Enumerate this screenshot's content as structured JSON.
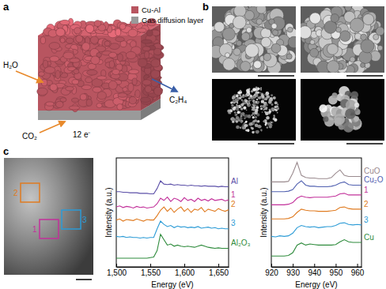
{
  "panels": {
    "a": {
      "label": "a",
      "legend": [
        {
          "name": "Cu-Al",
          "color": "#b85560"
        },
        {
          "name": "Gas diffusion layer",
          "color": "#9a9a9a"
        }
      ],
      "annotations": {
        "water": "H₂O",
        "product": "C₂H₄",
        "feed": "CO₂",
        "electrons": "12 e⁻"
      }
    },
    "b": {
      "label": "b"
    },
    "c": {
      "label": "c",
      "regions": [
        "1",
        "2",
        "3"
      ]
    }
  },
  "chart_data": [
    {
      "type": "line",
      "x_label": "Energy (eV)",
      "y_label": "Intensity (a.u.)",
      "x": [
        1500,
        1505,
        1510,
        1515,
        1520,
        1525,
        1530,
        1535,
        1540,
        1545,
        1550,
        1555,
        1560,
        1565,
        1570,
        1575,
        1580,
        1585,
        1590,
        1595,
        1600,
        1605,
        1610,
        1615,
        1620,
        1625,
        1630,
        1635,
        1640,
        1645,
        1650,
        1655,
        1660,
        1665
      ],
      "xlim": [
        1500,
        1665
      ],
      "xticks": [
        {
          "value": 1500,
          "label": "1,500"
        },
        {
          "value": 1550,
          "label": "1,550"
        },
        {
          "value": 1600,
          "label": "1,600"
        },
        {
          "value": 1650,
          "label": "1,650"
        }
      ],
      "ylim": [
        0,
        10
      ],
      "tick_labels": "x",
      "series": [
        {
          "name": "Al",
          "color": "#5b4fa8",
          "values": [
            6.9,
            6.9,
            6.85,
            6.85,
            6.8,
            6.8,
            6.8,
            6.75,
            6.75,
            6.75,
            6.7,
            6.7,
            7.2,
            7.9,
            7.6,
            7.55,
            7.6,
            7.5,
            7.55,
            7.5,
            7.5,
            7.45,
            7.5,
            7.45,
            7.45,
            7.4,
            7.45,
            7.4,
            7.4,
            7.4,
            7.35,
            7.4,
            7.35,
            7.35
          ]
        },
        {
          "name": "1",
          "color": "#c2309a",
          "values": [
            5.5,
            5.6,
            5.45,
            5.55,
            5.5,
            5.4,
            5.55,
            5.45,
            5.5,
            5.4,
            5.45,
            5.5,
            5.8,
            6.3,
            6.1,
            6.4,
            6.0,
            6.3,
            6.2,
            6.0,
            6.35,
            6.1,
            6.2,
            6.0,
            6.3,
            6.1,
            6.2,
            6.05,
            6.25,
            6.1,
            6.15,
            6.2,
            6.05,
            6.15
          ]
        },
        {
          "name": "2",
          "color": "#e07b20",
          "values": [
            4.3,
            4.4,
            4.2,
            4.35,
            4.3,
            4.25,
            4.4,
            4.3,
            4.2,
            4.35,
            4.3,
            4.3,
            4.7,
            5.2,
            5.5,
            5.1,
            5.4,
            5.0,
            5.3,
            5.5,
            5.1,
            5.35,
            5.0,
            5.3,
            5.2,
            5.45,
            5.05,
            5.3,
            5.2,
            5.1,
            5.35,
            5.2,
            5.1,
            5.25
          ]
        },
        {
          "name": "3",
          "color": "#2b9bd6",
          "values": [
            2.8,
            2.75,
            2.8,
            2.7,
            2.75,
            2.7,
            2.7,
            2.65,
            2.7,
            2.65,
            2.7,
            2.7,
            3.5,
            4.2,
            3.9,
            3.7,
            3.8,
            3.6,
            3.75,
            3.65,
            3.7,
            3.6,
            3.65,
            3.6,
            3.7,
            3.55,
            3.6,
            3.65,
            3.55,
            3.6,
            3.5,
            3.55,
            3.5,
            3.5
          ]
        },
        {
          "name": "Al₂O₃",
          "color": "#2e8b3c",
          "values": [
            0.8,
            0.8,
            0.8,
            0.8,
            0.8,
            0.8,
            0.8,
            0.8,
            0.8,
            0.8,
            0.85,
            0.9,
            1.5,
            3.0,
            2.5,
            2.0,
            2.1,
            1.9,
            2.0,
            1.9,
            1.85,
            1.9,
            1.85,
            1.8,
            1.9,
            2.0,
            1.9,
            1.8,
            1.75,
            1.7,
            1.75,
            1.7,
            1.7,
            1.7
          ]
        }
      ]
    },
    {
      "type": "line",
      "x_label": "Energy (eV)",
      "y_label": "Intensity (a.u.)",
      "x": [
        920,
        922,
        924,
        926,
        928,
        930,
        932,
        934,
        936,
        938,
        940,
        942,
        944,
        946,
        948,
        950,
        952,
        954,
        956,
        958,
        960,
        962
      ],
      "xlim": [
        920,
        962
      ],
      "xticks": [
        920,
        930,
        940,
        950,
        960
      ],
      "ylim": [
        0,
        10
      ],
      "tick_labels": "x",
      "series": [
        {
          "name": "CuO",
          "color": "#9a8a8e",
          "values": [
            7.8,
            7.8,
            7.8,
            7.8,
            7.85,
            8.6,
            9.6,
            8.4,
            8.2,
            8.15,
            8.15,
            8.1,
            8.1,
            8.1,
            8.2,
            8.6,
            8.9,
            8.4,
            8.3,
            8.3,
            8.3,
            8.3
          ]
        },
        {
          "name": "Cu₂O",
          "color": "#5060b0",
          "values": [
            6.9,
            6.9,
            6.9,
            6.9,
            6.95,
            7.1,
            7.6,
            7.9,
            7.5,
            7.4,
            7.4,
            7.35,
            7.35,
            7.35,
            7.4,
            7.5,
            7.7,
            7.8,
            7.55,
            7.5,
            7.5,
            7.5
          ]
        },
        {
          "name": "1",
          "color": "#c2309a",
          "values": [
            5.7,
            5.7,
            5.7,
            5.7,
            5.75,
            5.9,
            6.3,
            6.5,
            6.4,
            6.35,
            6.4,
            6.4,
            6.4,
            6.4,
            6.45,
            6.5,
            6.7,
            6.75,
            6.6,
            6.6,
            6.6,
            6.6
          ]
        },
        {
          "name": "2",
          "color": "#e07b20",
          "values": [
            4.4,
            4.4,
            4.4,
            4.4,
            4.45,
            4.6,
            5.0,
            5.3,
            5.2,
            5.15,
            5.15,
            5.1,
            5.1,
            5.1,
            5.15,
            5.2,
            5.45,
            5.5,
            5.35,
            5.3,
            5.3,
            5.3
          ]
        },
        {
          "name": "3",
          "color": "#2b9bd6",
          "values": [
            2.8,
            2.75,
            2.85,
            2.8,
            2.85,
            3.1,
            3.6,
            3.8,
            3.7,
            3.65,
            3.7,
            3.6,
            3.65,
            3.7,
            3.7,
            3.8,
            4.0,
            4.05,
            3.9,
            3.85,
            3.9,
            3.85
          ]
        },
        {
          "name": "Cu",
          "color": "#2e8b3c",
          "values": [
            1.0,
            1.0,
            1.0,
            1.0,
            1.05,
            1.3,
            2.0,
            2.2,
            2.0,
            2.1,
            2.05,
            2.0,
            2.0,
            2.0,
            2.0,
            2.05,
            2.3,
            2.5,
            2.3,
            2.25,
            2.25,
            2.25
          ]
        }
      ]
    }
  ]
}
